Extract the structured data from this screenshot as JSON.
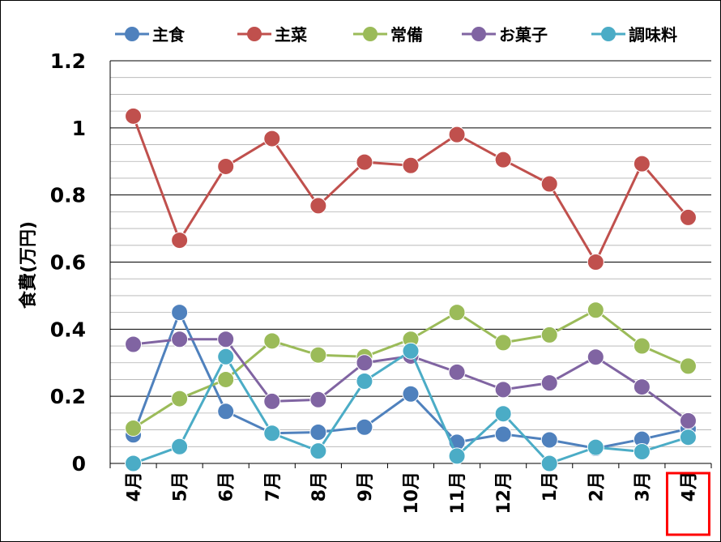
{
  "chart_data": {
    "type": "line",
    "ylabel": "食費(万円)",
    "ylim": [
      0,
      1.2
    ],
    "y_ticks": [
      "0",
      "0.2",
      "0.4",
      "0.6",
      "0.8",
      "1",
      "1.2"
    ],
    "categories": [
      "4月",
      "5月",
      "6月",
      "7月",
      "8月",
      "9月",
      "10月",
      "11月",
      "12月",
      "1月",
      "2月",
      "3月",
      "4月"
    ],
    "highlighted_category_index": 12,
    "highlight_color": "#ff0000",
    "grid": true,
    "legend_position": "top",
    "series": [
      {
        "name": "主食",
        "color": "#4f81bd",
        "values": [
          0.085,
          0.45,
          0.155,
          0.09,
          0.093,
          0.108,
          0.207,
          0.063,
          0.087,
          0.07,
          0.045,
          0.072,
          0.103
        ]
      },
      {
        "name": "主菜",
        "color": "#c0504d",
        "values": [
          1.035,
          0.665,
          0.885,
          0.968,
          0.768,
          0.898,
          0.888,
          0.98,
          0.905,
          0.833,
          0.6,
          0.893,
          0.733
        ]
      },
      {
        "name": "常備",
        "color": "#9bbb59",
        "values": [
          0.105,
          0.193,
          0.25,
          0.365,
          0.323,
          0.318,
          0.37,
          0.45,
          0.36,
          0.383,
          0.457,
          0.35,
          0.29
        ]
      },
      {
        "name": "お菓子",
        "color": "#8064a2",
        "values": [
          0.355,
          0.37,
          0.37,
          0.185,
          0.19,
          0.3,
          0.32,
          0.272,
          0.22,
          0.24,
          0.317,
          0.228,
          0.127
        ]
      },
      {
        "name": "調味料",
        "color": "#4bacc6",
        "values": [
          0.0,
          0.05,
          0.318,
          0.09,
          0.037,
          0.245,
          0.335,
          0.022,
          0.148,
          0.0,
          0.048,
          0.035,
          0.078
        ]
      }
    ]
  }
}
